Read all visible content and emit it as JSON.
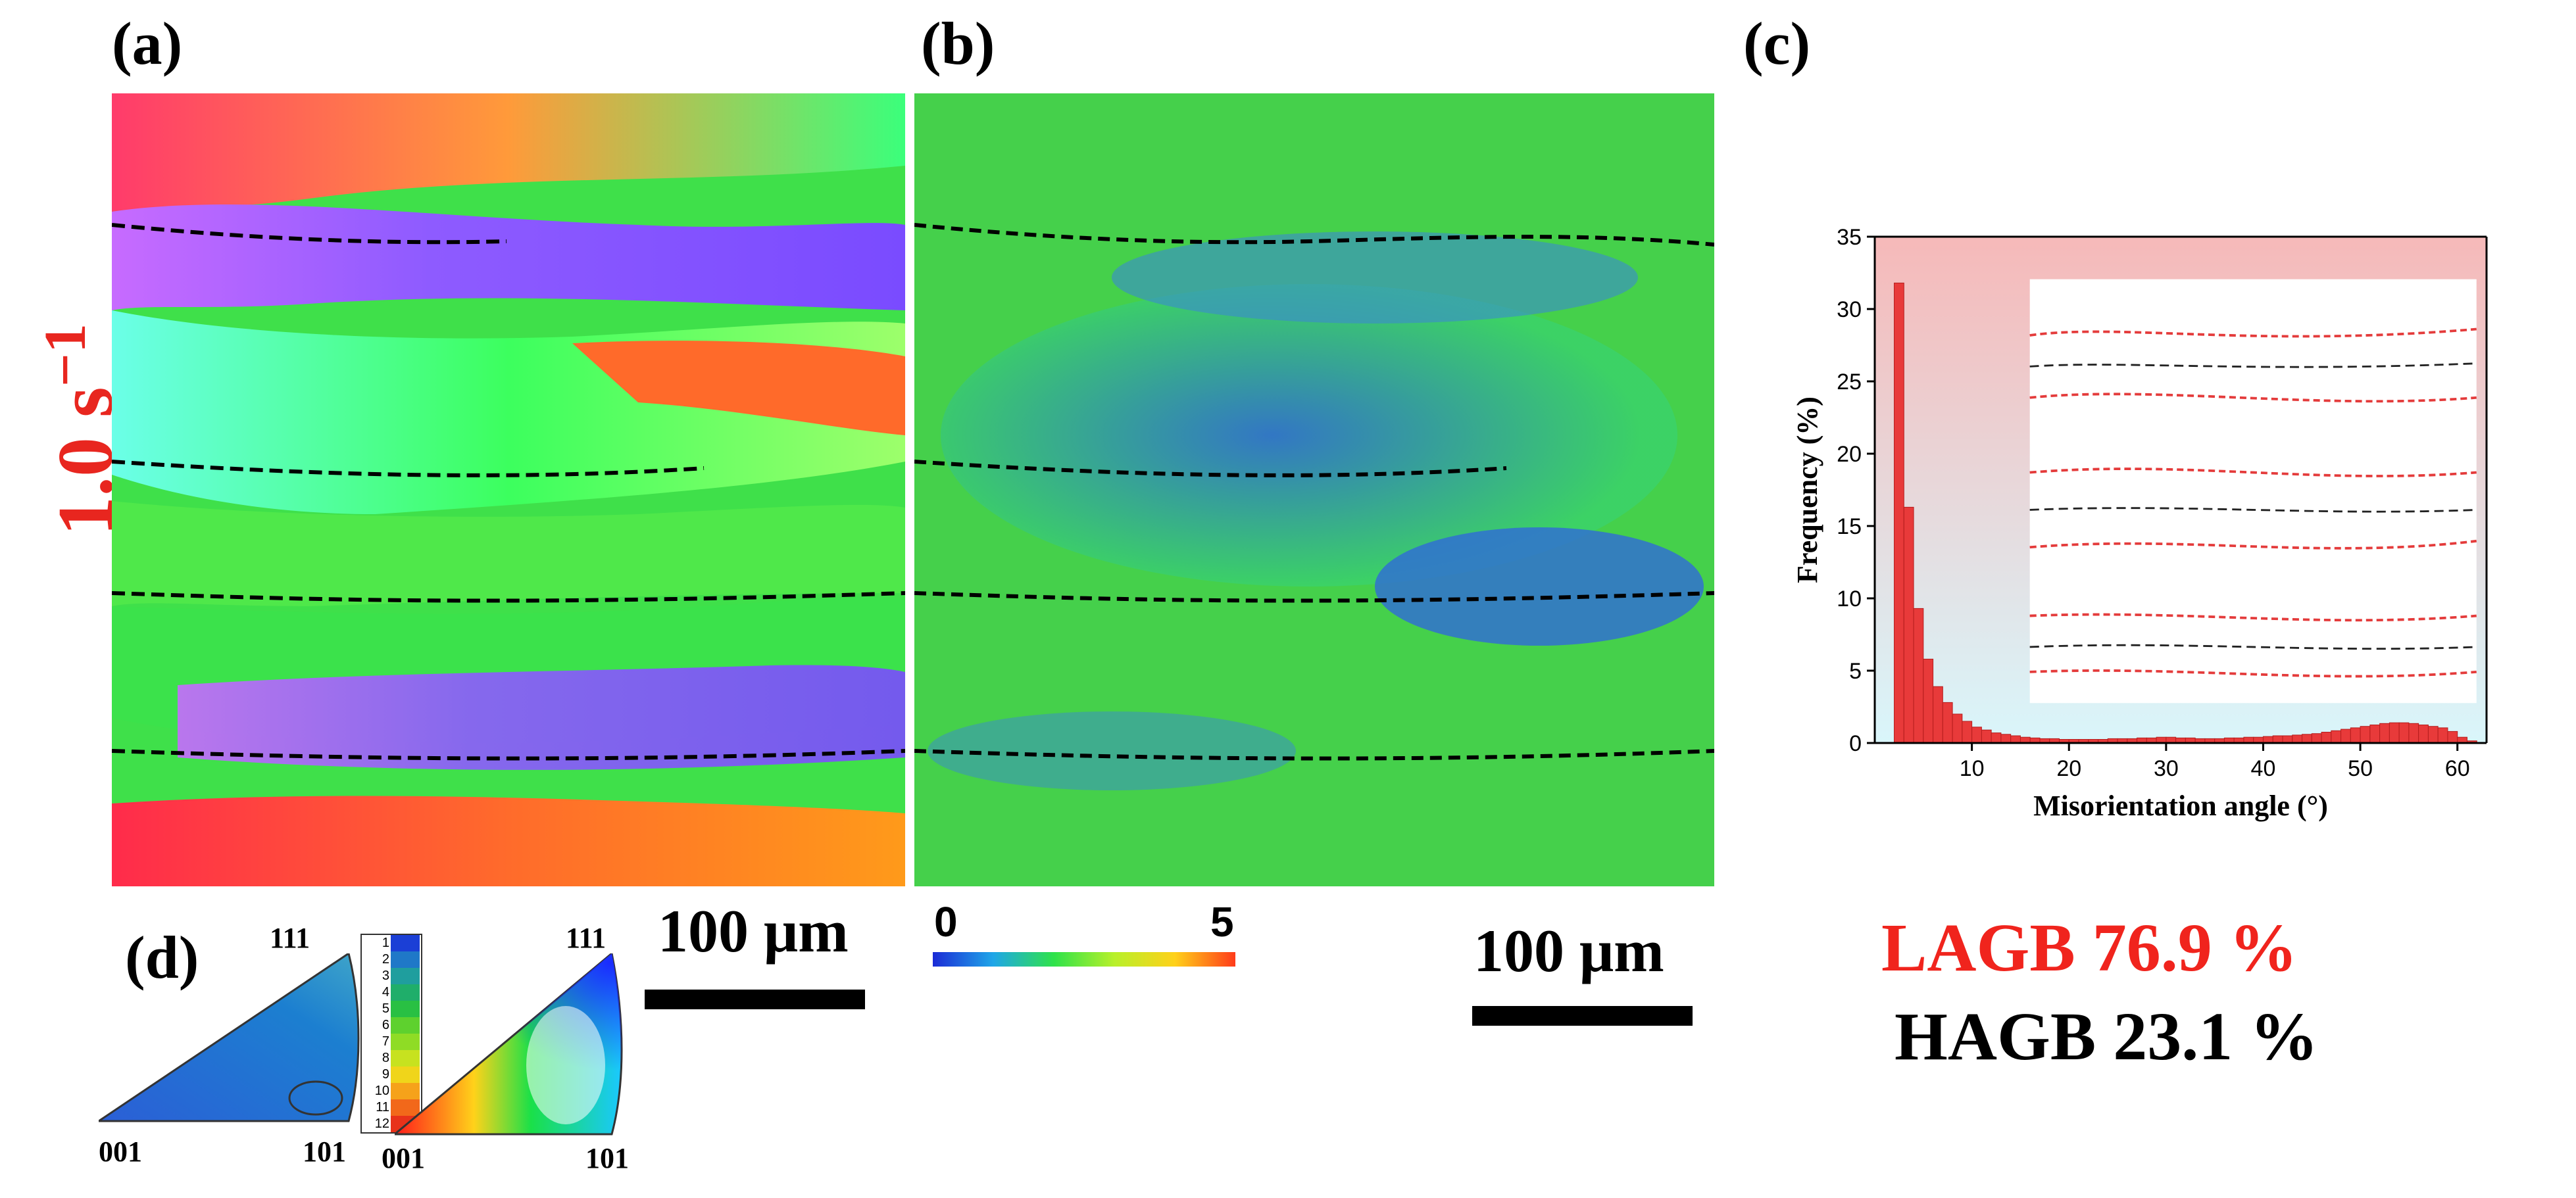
{
  "panels": {
    "a": {
      "label": "(a)"
    },
    "b": {
      "label": "(b)"
    },
    "c": {
      "label": "(c)"
    },
    "d": {
      "label": "(d)"
    }
  },
  "strain_rate": {
    "text": "1.0 s",
    "exponent": "−1"
  },
  "scale_bars": [
    {
      "label": "100 μm"
    },
    {
      "label": "100 μm"
    }
  ],
  "kam_colorbar": {
    "min_label": "0",
    "max_label": "5"
  },
  "ipf": {
    "left": {
      "top": "111",
      "bottom_left": "001",
      "bottom_right": "101"
    },
    "right": {
      "top": "111",
      "bottom_left": "001",
      "bottom_right": "101"
    },
    "legend_ticks": [
      "1",
      "2",
      "3",
      "4",
      "5",
      "6",
      "7",
      "8",
      "9",
      "10",
      "11",
      "12"
    ]
  },
  "chart_data": {
    "type": "bar",
    "xlabel": "Misorientation angle (°)",
    "ylabel": "Frequency (%)",
    "xlim": [
      0,
      63
    ],
    "ylim": [
      0,
      35
    ],
    "xticks": [
      10,
      20,
      30,
      40,
      50,
      60
    ],
    "yticks": [
      0,
      5,
      10,
      15,
      20,
      25,
      30,
      35
    ],
    "bin_width": 1,
    "bins": [
      {
        "x": 2.5,
        "y": 31.8
      },
      {
        "x": 3.5,
        "y": 16.3
      },
      {
        "x": 4.5,
        "y": 9.3
      },
      {
        "x": 5.5,
        "y": 5.8
      },
      {
        "x": 6.5,
        "y": 3.9
      },
      {
        "x": 7.5,
        "y": 2.8
      },
      {
        "x": 8.5,
        "y": 2.0
      },
      {
        "x": 9.5,
        "y": 1.5
      },
      {
        "x": 10.5,
        "y": 1.1
      },
      {
        "x": 11.5,
        "y": 0.9
      },
      {
        "x": 12.5,
        "y": 0.7
      },
      {
        "x": 13.5,
        "y": 0.6
      },
      {
        "x": 14.5,
        "y": 0.5
      },
      {
        "x": 15.5,
        "y": 0.4
      },
      {
        "x": 16.5,
        "y": 0.35
      },
      {
        "x": 17.5,
        "y": 0.3
      },
      {
        "x": 18.5,
        "y": 0.3
      },
      {
        "x": 19.5,
        "y": 0.25
      },
      {
        "x": 20.5,
        "y": 0.25
      },
      {
        "x": 21.5,
        "y": 0.25
      },
      {
        "x": 22.5,
        "y": 0.25
      },
      {
        "x": 23.5,
        "y": 0.25
      },
      {
        "x": 24.5,
        "y": 0.3
      },
      {
        "x": 25.5,
        "y": 0.3
      },
      {
        "x": 26.5,
        "y": 0.3
      },
      {
        "x": 27.5,
        "y": 0.35
      },
      {
        "x": 28.5,
        "y": 0.35
      },
      {
        "x": 29.5,
        "y": 0.4
      },
      {
        "x": 30.5,
        "y": 0.4
      },
      {
        "x": 31.5,
        "y": 0.35
      },
      {
        "x": 32.5,
        "y": 0.35
      },
      {
        "x": 33.5,
        "y": 0.3
      },
      {
        "x": 34.5,
        "y": 0.3
      },
      {
        "x": 35.5,
        "y": 0.3
      },
      {
        "x": 36.5,
        "y": 0.35
      },
      {
        "x": 37.5,
        "y": 0.35
      },
      {
        "x": 38.5,
        "y": 0.4
      },
      {
        "x": 39.5,
        "y": 0.4
      },
      {
        "x": 40.5,
        "y": 0.45
      },
      {
        "x": 41.5,
        "y": 0.5
      },
      {
        "x": 42.5,
        "y": 0.5
      },
      {
        "x": 43.5,
        "y": 0.55
      },
      {
        "x": 44.5,
        "y": 0.6
      },
      {
        "x": 45.5,
        "y": 0.65
      },
      {
        "x": 46.5,
        "y": 0.75
      },
      {
        "x": 47.5,
        "y": 0.85
      },
      {
        "x": 48.5,
        "y": 0.95
      },
      {
        "x": 49.5,
        "y": 1.05
      },
      {
        "x": 50.5,
        "y": 1.15
      },
      {
        "x": 51.5,
        "y": 1.25
      },
      {
        "x": 52.5,
        "y": 1.35
      },
      {
        "x": 53.5,
        "y": 1.4
      },
      {
        "x": 54.5,
        "y": 1.4
      },
      {
        "x": 55.5,
        "y": 1.35
      },
      {
        "x": 56.5,
        "y": 1.25
      },
      {
        "x": 57.5,
        "y": 1.15
      },
      {
        "x": 58.5,
        "y": 1.05
      },
      {
        "x": 59.5,
        "y": 0.8
      },
      {
        "x": 60.5,
        "y": 0.4
      },
      {
        "x": 61.5,
        "y": 0.15
      }
    ],
    "bar_color": "#e83a3a",
    "background_gradient": [
      "#f6b9b9",
      "#d9f6fb"
    ],
    "grid": false
  },
  "gb_stats": [
    {
      "text": "LAGB  76.9 %",
      "color": "#f0241d"
    },
    {
      "text": "HAGB 23.1 %",
      "color": "#000000"
    }
  ]
}
